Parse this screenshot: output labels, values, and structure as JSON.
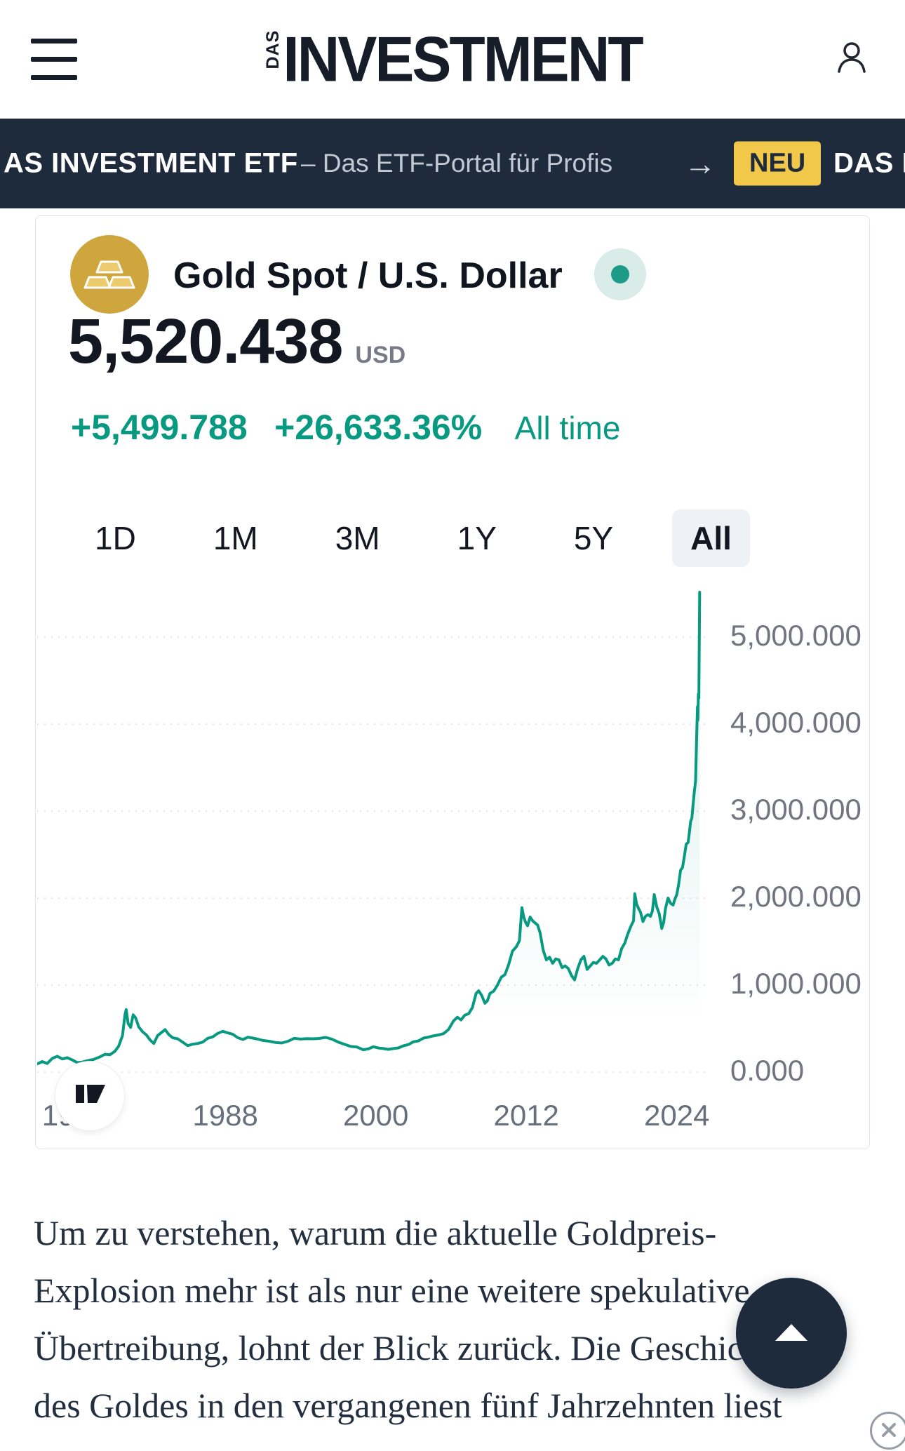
{
  "header": {
    "logo_das": "DAS",
    "logo_main": "INVESTMENT"
  },
  "ticker_bar": {
    "brand": "AS INVESTMENT ETF",
    "tagline": "– Das ETF-Portal für Profis",
    "arrow": "→",
    "badge": "NEU",
    "brand_next": "DAS I"
  },
  "widget": {
    "symbol_title": "Gold Spot / U.S. Dollar",
    "price": "5,520.438",
    "currency": "USD",
    "change_abs": "+5,499.788",
    "change_pct": "+26,633.36%",
    "range_label": "All time",
    "ranges": [
      {
        "label": "1D"
      },
      {
        "label": "1M"
      },
      {
        "label": "3M"
      },
      {
        "label": "1Y"
      },
      {
        "label": "5Y"
      },
      {
        "label": "All"
      }
    ],
    "attribution_glyph": "17"
  },
  "chart_data": {
    "type": "area",
    "title": "Gold Spot / U.S. Dollar — All time",
    "line_color": "#089981",
    "fill_color": "rgba(8,153,129,0.14)",
    "grid": "dashed-horizontal",
    "xlim": [
      1973,
      2026.7
    ],
    "ylim": [
      -88,
      5560
    ],
    "x_ticks": [
      1976,
      1988,
      2000,
      2012,
      2024
    ],
    "x_tick_labels": [
      "1976",
      "1988",
      "2000",
      "2012",
      "2024"
    ],
    "y_ticks": [
      0,
      1000,
      2000,
      3000,
      4000,
      5000
    ],
    "y_tick_labels": [
      "0.000",
      "1,000.000",
      "2,000.000",
      "3,000.000",
      "4,000.000",
      "5,000.000"
    ],
    "series": [
      {
        "name": "Gold Spot / U.S. Dollar",
        "points": [
          [
            1973,
            95
          ],
          [
            1973.4,
            122
          ],
          [
            1973.8,
            100
          ],
          [
            1974.2,
            158
          ],
          [
            1974.6,
            183
          ],
          [
            1975,
            152
          ],
          [
            1975.4,
            166
          ],
          [
            1975.8,
            140
          ],
          [
            1976.2,
            110
          ],
          [
            1976.6,
            116
          ],
          [
            1977,
            132
          ],
          [
            1977.5,
            147
          ],
          [
            1978,
            176
          ],
          [
            1978.4,
            206
          ],
          [
            1978.8,
            200
          ],
          [
            1979.2,
            240
          ],
          [
            1979.5,
            300
          ],
          [
            1979.8,
            420
          ],
          [
            1980,
            660
          ],
          [
            1980.1,
            720
          ],
          [
            1980.25,
            560
          ],
          [
            1980.45,
            515
          ],
          [
            1980.65,
            660
          ],
          [
            1980.85,
            625
          ],
          [
            1981.1,
            520
          ],
          [
            1981.4,
            465
          ],
          [
            1981.7,
            430
          ],
          [
            1982,
            370
          ],
          [
            1982.3,
            330
          ],
          [
            1982.6,
            420
          ],
          [
            1982.9,
            455
          ],
          [
            1983.2,
            490
          ],
          [
            1983.5,
            432
          ],
          [
            1983.8,
            396
          ],
          [
            1984.2,
            384
          ],
          [
            1984.6,
            345
          ],
          [
            1985,
            305
          ],
          [
            1985.4,
            322
          ],
          [
            1985.8,
            330
          ],
          [
            1986.2,
            346
          ],
          [
            1986.6,
            390
          ],
          [
            1987,
            406
          ],
          [
            1987.4,
            446
          ],
          [
            1987.8,
            470
          ],
          [
            1988.2,
            452
          ],
          [
            1988.6,
            436
          ],
          [
            1989,
            396
          ],
          [
            1989.4,
            376
          ],
          [
            1989.8,
            402
          ],
          [
            1990.2,
            392
          ],
          [
            1990.6,
            380
          ],
          [
            1991,
            365
          ],
          [
            1991.5,
            356
          ],
          [
            1992,
            341
          ],
          [
            1992.5,
            336
          ],
          [
            1993,
            356
          ],
          [
            1993.5,
            390
          ],
          [
            1994,
            381
          ],
          [
            1994.5,
            386
          ],
          [
            1995,
            384
          ],
          [
            1995.5,
            388
          ],
          [
            1996,
            400
          ],
          [
            1996.5,
            380
          ],
          [
            1997,
            346
          ],
          [
            1997.5,
            320
          ],
          [
            1998,
            296
          ],
          [
            1998.5,
            289
          ],
          [
            1999,
            258
          ],
          [
            1999.4,
            268
          ],
          [
            1999.8,
            292
          ],
          [
            2000.2,
            278
          ],
          [
            2000.6,
            272
          ],
          [
            2001,
            262
          ],
          [
            2001.4,
            272
          ],
          [
            2001.8,
            279
          ],
          [
            2002.2,
            303
          ],
          [
            2002.6,
            318
          ],
          [
            2003,
            349
          ],
          [
            2003.4,
            360
          ],
          [
            2003.8,
            392
          ],
          [
            2004.2,
            403
          ],
          [
            2004.6,
            418
          ],
          [
            2005,
            428
          ],
          [
            2005.4,
            443
          ],
          [
            2005.8,
            492
          ],
          [
            2006.2,
            590
          ],
          [
            2006.5,
            632
          ],
          [
            2006.8,
            601
          ],
          [
            2007.1,
            656
          ],
          [
            2007.4,
            672
          ],
          [
            2007.7,
            742
          ],
          [
            2008,
            906
          ],
          [
            2008.2,
            936
          ],
          [
            2008.45,
            882
          ],
          [
            2008.7,
            792
          ],
          [
            2008.9,
            822
          ],
          [
            2009.1,
            906
          ],
          [
            2009.4,
            932
          ],
          [
            2009.7,
            1002
          ],
          [
            2010,
            1092
          ],
          [
            2010.3,
            1122
          ],
          [
            2010.6,
            1242
          ],
          [
            2010.9,
            1392
          ],
          [
            2011.2,
            1442
          ],
          [
            2011.45,
            1512
          ],
          [
            2011.65,
            1892
          ],
          [
            2011.8,
            1782
          ],
          [
            2011.95,
            1722
          ],
          [
            2012.1,
            1684
          ],
          [
            2012.3,
            1784
          ],
          [
            2012.5,
            1742
          ],
          [
            2012.7,
            1716
          ],
          [
            2012.9,
            1692
          ],
          [
            2013.1,
            1602
          ],
          [
            2013.35,
            1402
          ],
          [
            2013.6,
            1292
          ],
          [
            2013.85,
            1322
          ],
          [
            2014.1,
            1252
          ],
          [
            2014.35,
            1302
          ],
          [
            2014.6,
            1292
          ],
          [
            2014.85,
            1202
          ],
          [
            2015.1,
            1222
          ],
          [
            2015.35,
            1192
          ],
          [
            2015.6,
            1112
          ],
          [
            2015.85,
            1062
          ],
          [
            2016.1,
            1192
          ],
          [
            2016.35,
            1292
          ],
          [
            2016.6,
            1332
          ],
          [
            2016.85,
            1182
          ],
          [
            2017.1,
            1222
          ],
          [
            2017.35,
            1262
          ],
          [
            2017.6,
            1252
          ],
          [
            2017.85,
            1292
          ],
          [
            2018.1,
            1332
          ],
          [
            2018.35,
            1302
          ],
          [
            2018.6,
            1232
          ],
          [
            2018.85,
            1252
          ],
          [
            2019.1,
            1302
          ],
          [
            2019.35,
            1292
          ],
          [
            2019.6,
            1422
          ],
          [
            2019.85,
            1482
          ],
          [
            2020.1,
            1592
          ],
          [
            2020.35,
            1682
          ],
          [
            2020.55,
            1742
          ],
          [
            2020.65,
            2052
          ],
          [
            2020.8,
            1932
          ],
          [
            2020.95,
            1882
          ],
          [
            2021.1,
            1842
          ],
          [
            2021.3,
            1732
          ],
          [
            2021.5,
            1792
          ],
          [
            2021.7,
            1812
          ],
          [
            2021.9,
            1792
          ],
          [
            2022.05,
            1852
          ],
          [
            2022.2,
            2042
          ],
          [
            2022.4,
            1902
          ],
          [
            2022.6,
            1822
          ],
          [
            2022.8,
            1652
          ],
          [
            2022.95,
            1722
          ],
          [
            2023.1,
            1882
          ],
          [
            2023.3,
            2002
          ],
          [
            2023.5,
            1942
          ],
          [
            2023.7,
            1922
          ],
          [
            2023.85,
            1992
          ],
          [
            2024,
            2042
          ],
          [
            2024.15,
            2162
          ],
          [
            2024.3,
            2322
          ],
          [
            2024.45,
            2352
          ],
          [
            2024.6,
            2482
          ],
          [
            2024.75,
            2622
          ],
          [
            2024.9,
            2642
          ],
          [
            2025,
            2752
          ],
          [
            2025.1,
            2882
          ],
          [
            2025.2,
            2922
          ],
          [
            2025.3,
            3082
          ],
          [
            2025.4,
            3232
          ],
          [
            2025.5,
            3352
          ],
          [
            2025.55,
            3652
          ],
          [
            2025.6,
            3952
          ],
          [
            2025.65,
            4202
          ],
          [
            2025.68,
            4052
          ],
          [
            2025.72,
            4352
          ],
          [
            2025.76,
            4302
          ],
          [
            2025.78,
            4802
          ],
          [
            2025.82,
            5520
          ]
        ]
      }
    ]
  },
  "article": {
    "lines": [
      "Um zu verstehen, warum die aktuelle Goldpreis-",
      "Explosion mehr ist als nur eine weitere spekulative",
      "Übertreibung, lohnt der Blick zurück. Die Geschichte",
      "des Goldes in den vergangenen fünf Jahrzehnten liest"
    ]
  }
}
